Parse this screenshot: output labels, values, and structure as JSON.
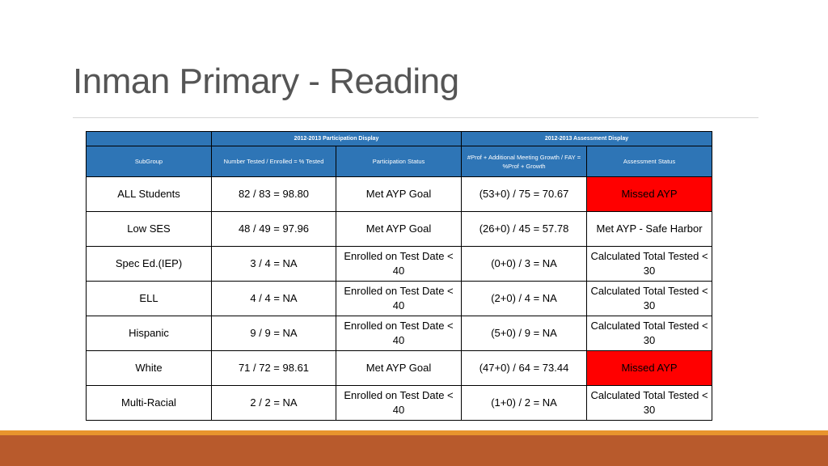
{
  "slide": {
    "title": "Inman Primary - Reading"
  },
  "table": {
    "group_headers": {
      "participation": "2012-2013 Participation Display",
      "assessment": "2012-2013 Assessment Display"
    },
    "column_headers": [
      "SubGroup",
      "Number Tested / Enrolled = % Tested",
      "Participation Status",
      "#Prof + Additional Meeting Growth / FAY = %Prof + Growth",
      "Assessment Status"
    ],
    "rows": [
      [
        "ALL Students",
        "82 / 83 = 98.80",
        "Met AYP Goal",
        "(53+0) / 75 = 70.67",
        "Missed AYP"
      ],
      [
        "Low SES",
        "48 / 49 = 97.96",
        "Met AYP Goal",
        "(26+0) / 45 = 57.78",
        "Met AYP - Safe Harbor"
      ],
      [
        "Spec Ed.(IEP)",
        "3 / 4 = NA",
        "Enrolled on Test Date < 40",
        "(0+0) / 3 = NA",
        "Calculated Total Tested < 30"
      ],
      [
        "ELL",
        "4 / 4 = NA",
        "Enrolled on Test Date < 40",
        "(2+0) / 4 = NA",
        "Calculated Total Tested < 30"
      ],
      [
        "Hispanic",
        "9 / 9 = NA",
        "Enrolled on Test Date < 40",
        "(5+0) / 9 = NA",
        "Calculated Total Tested < 30"
      ],
      [
        "White",
        "71 / 72 = 98.61",
        "Met AYP Goal",
        "(47+0) / 64 = 73.44",
        "Missed AYP"
      ],
      [
        "Multi-Racial",
        "2 / 2 = NA",
        "Enrolled on Test Date < 40",
        "(1+0) / 2 = NA",
        "Calculated Total Tested < 30"
      ]
    ]
  },
  "colors": {
    "header_blue": "#2e75b6",
    "missed_red": "#ff0000",
    "footer_orange": "#e8942d",
    "footer_rust": "#b85a2c"
  }
}
